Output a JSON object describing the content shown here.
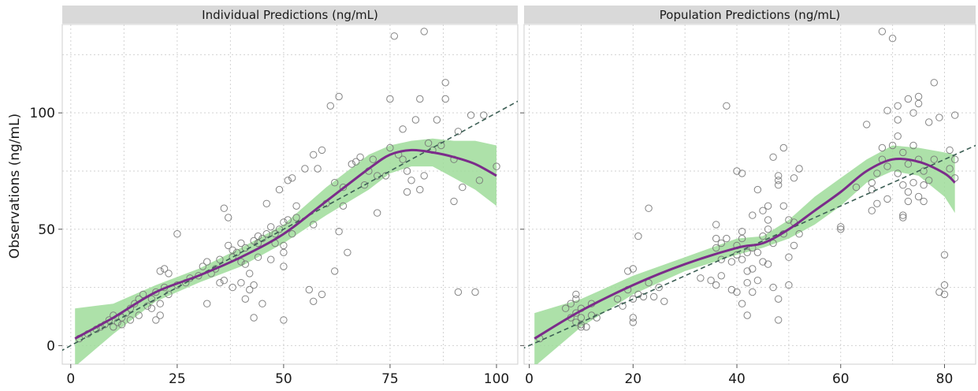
{
  "chart_data": [
    {
      "type": "scatter",
      "title": "Individual Predictions (ng/mL)",
      "xlabel": "",
      "ylabel": "Observations (ng/mL)",
      "xlim": [
        -2,
        105
      ],
      "ylim": [
        -8,
        138
      ],
      "x_ticks": [
        "0",
        "25",
        "50",
        "75",
        "100"
      ],
      "x_tick_values": [
        0,
        25,
        50,
        75,
        100
      ],
      "y_ticks": [
        "0",
        "50",
        "100"
      ],
      "y_tick_values": [
        0,
        50,
        100
      ],
      "grid": true,
      "identity_line": true,
      "colors": {
        "points": "#777777",
        "smooth": "#7b2c8a",
        "band": "#9fdc9a",
        "identity": "#3d5f55"
      },
      "points": [
        [
          2,
          3
        ],
        [
          4,
          5
        ],
        [
          6,
          7
        ],
        [
          7,
          8
        ],
        [
          8,
          9
        ],
        [
          9,
          11
        ],
        [
          10,
          8
        ],
        [
          10,
          13
        ],
        [
          11,
          10
        ],
        [
          12,
          12
        ],
        [
          12,
          9
        ],
        [
          13,
          14
        ],
        [
          14,
          16
        ],
        [
          14,
          11
        ],
        [
          15,
          18
        ],
        [
          16,
          20
        ],
        [
          16,
          13
        ],
        [
          17,
          22
        ],
        [
          18,
          17
        ],
        [
          19,
          16
        ],
        [
          19,
          20
        ],
        [
          20,
          23
        ],
        [
          20,
          11
        ],
        [
          21,
          13
        ],
        [
          21,
          18
        ],
        [
          21,
          32
        ],
        [
          22,
          33
        ],
        [
          22,
          25
        ],
        [
          23,
          22
        ],
        [
          23,
          31
        ],
        [
          25,
          48
        ],
        [
          25,
          26
        ],
        [
          27,
          27
        ],
        [
          28,
          29
        ],
        [
          30,
          30
        ],
        [
          31,
          34
        ],
        [
          32,
          36
        ],
        [
          32,
          18
        ],
        [
          33,
          31
        ],
        [
          34,
          33
        ],
        [
          35,
          37
        ],
        [
          35,
          27
        ],
        [
          36,
          59
        ],
        [
          36,
          28
        ],
        [
          37,
          43
        ],
        [
          37,
          55
        ],
        [
          38,
          38
        ],
        [
          38,
          25
        ],
        [
          38,
          41
        ],
        [
          39,
          40
        ],
        [
          40,
          44
        ],
        [
          40,
          36
        ],
        [
          40,
          27
        ],
        [
          41,
          42
        ],
        [
          41,
          20
        ],
        [
          41,
          35
        ],
        [
          42,
          31
        ],
        [
          42,
          24
        ],
        [
          43,
          45
        ],
        [
          43,
          26
        ],
        [
          43,
          12
        ],
        [
          44,
          38
        ],
        [
          44,
          47
        ],
        [
          44,
          44
        ],
        [
          45,
          46
        ],
        [
          45,
          18
        ],
        [
          46,
          48
        ],
        [
          46,
          61
        ],
        [
          47,
          51
        ],
        [
          47,
          37
        ],
        [
          48,
          44
        ],
        [
          48,
          48
        ],
        [
          49,
          50
        ],
        [
          49,
          67
        ],
        [
          50,
          53
        ],
        [
          50,
          43
        ],
        [
          50,
          40
        ],
        [
          50,
          34
        ],
        [
          50,
          11
        ],
        [
          51,
          71
        ],
        [
          51,
          54
        ],
        [
          52,
          72
        ],
        [
          52,
          48
        ],
        [
          53,
          55
        ],
        [
          53,
          60
        ],
        [
          55,
          76
        ],
        [
          56,
          24
        ],
        [
          57,
          52
        ],
        [
          57,
          82
        ],
        [
          57,
          19
        ],
        [
          58,
          76
        ],
        [
          59,
          84
        ],
        [
          59,
          22
        ],
        [
          60,
          61
        ],
        [
          61,
          103
        ],
        [
          62,
          70
        ],
        [
          62,
          32
        ],
        [
          63,
          107
        ],
        [
          63,
          49
        ],
        [
          64,
          68
        ],
        [
          64,
          60
        ],
        [
          65,
          40
        ],
        [
          66,
          78
        ],
        [
          67,
          79
        ],
        [
          68,
          81
        ],
        [
          69,
          69
        ],
        [
          70,
          75
        ],
        [
          71,
          80
        ],
        [
          72,
          73
        ],
        [
          72,
          57
        ],
        [
          74,
          73
        ],
        [
          75,
          85
        ],
        [
          75,
          106
        ],
        [
          76,
          133
        ],
        [
          77,
          82
        ],
        [
          78,
          93
        ],
        [
          78,
          80
        ],
        [
          79,
          75
        ],
        [
          79,
          66
        ],
        [
          80,
          71
        ],
        [
          81,
          97
        ],
        [
          82,
          106
        ],
        [
          82,
          67
        ],
        [
          83,
          135
        ],
        [
          83,
          73
        ],
        [
          84,
          87
        ],
        [
          85,
          84
        ],
        [
          86,
          97
        ],
        [
          87,
          86
        ],
        [
          88,
          106
        ],
        [
          88,
          113
        ],
        [
          90,
          62
        ],
        [
          90,
          80
        ],
        [
          91,
          92
        ],
        [
          91,
          23
        ],
        [
          92,
          68
        ],
        [
          94,
          99
        ],
        [
          95,
          23
        ],
        [
          96,
          71
        ],
        [
          97,
          99
        ],
        [
          100,
          77
        ]
      ],
      "smooth_x": [
        1,
        10,
        20,
        30,
        40,
        50,
        60,
        70,
        75,
        80,
        85,
        90,
        95,
        100
      ],
      "smooth_y": [
        3,
        12,
        23,
        30,
        38,
        48,
        62,
        76,
        82,
        84,
        83,
        81,
        78,
        73
      ],
      "band_lower": [
        -9,
        5,
        19,
        27,
        34,
        44,
        56,
        67,
        74,
        77,
        77,
        72,
        67,
        60
      ],
      "band_upper": [
        16,
        18,
        26,
        33,
        42,
        52,
        68,
        82,
        86,
        88,
        89,
        88,
        88,
        86
      ]
    },
    {
      "type": "scatter",
      "title": "Population Predictions (ng/mL)",
      "xlabel": "",
      "ylabel": "",
      "xlim": [
        -1,
        86
      ],
      "ylim": [
        -8,
        138
      ],
      "x_ticks": [
        "0",
        "20",
        "40",
        "60",
        "80"
      ],
      "x_tick_values": [
        0,
        20,
        40,
        60,
        80
      ],
      "y_ticks": [
        "0",
        "50",
        "100"
      ],
      "y_tick_values": [
        0,
        50,
        100
      ],
      "grid": true,
      "identity_line": true,
      "colors": {
        "points": "#777777",
        "smooth": "#7b2c8a",
        "band": "#9fdc9a",
        "identity": "#3d5f55"
      },
      "points": [
        [
          2,
          3
        ],
        [
          7,
          16
        ],
        [
          8,
          12
        ],
        [
          8,
          18
        ],
        [
          9,
          10
        ],
        [
          9,
          14
        ],
        [
          9,
          20
        ],
        [
          9,
          22
        ],
        [
          10,
          8
        ],
        [
          10,
          9
        ],
        [
          10,
          12
        ],
        [
          10,
          16
        ],
        [
          11,
          8
        ],
        [
          12,
          13
        ],
        [
          12,
          18
        ],
        [
          13,
          12
        ],
        [
          17,
          20
        ],
        [
          18,
          17
        ],
        [
          19,
          24
        ],
        [
          19,
          32
        ],
        [
          20,
          20
        ],
        [
          20,
          33
        ],
        [
          20,
          12
        ],
        [
          20,
          10
        ],
        [
          21,
          47
        ],
        [
          21,
          22
        ],
        [
          22,
          21
        ],
        [
          23,
          27
        ],
        [
          23,
          59
        ],
        [
          24,
          21
        ],
        [
          25,
          25
        ],
        [
          26,
          19
        ],
        [
          33,
          29
        ],
        [
          35,
          28
        ],
        [
          36,
          46
        ],
        [
          36,
          52
        ],
        [
          36,
          42
        ],
        [
          36,
          26
        ],
        [
          37,
          44
        ],
        [
          37,
          37
        ],
        [
          37,
          30
        ],
        [
          38,
          103
        ],
        [
          38,
          46
        ],
        [
          39,
          24
        ],
        [
          39,
          36
        ],
        [
          40,
          43
        ],
        [
          40,
          39
        ],
        [
          40,
          75
        ],
        [
          40,
          23
        ],
        [
          41,
          74
        ],
        [
          41,
          46
        ],
        [
          41,
          49
        ],
        [
          41,
          37
        ],
        [
          41,
          18
        ],
        [
          42,
          40
        ],
        [
          42,
          32
        ],
        [
          42,
          27
        ],
        [
          42,
          13
        ],
        [
          43,
          56
        ],
        [
          43,
          42
        ],
        [
          43,
          33
        ],
        [
          43,
          23
        ],
        [
          44,
          67
        ],
        [
          44,
          40
        ],
        [
          44,
          28
        ],
        [
          45,
          47
        ],
        [
          45,
          58
        ],
        [
          45,
          36
        ],
        [
          46,
          50
        ],
        [
          46,
          60
        ],
        [
          46,
          54
        ],
        [
          46,
          35
        ],
        [
          47,
          81
        ],
        [
          47,
          44
        ],
        [
          47,
          25
        ],
        [
          48,
          71
        ],
        [
          48,
          73
        ],
        [
          48,
          69
        ],
        [
          48,
          20
        ],
        [
          48,
          11
        ],
        [
          49,
          60
        ],
        [
          49,
          48
        ],
        [
          49,
          85
        ],
        [
          50,
          54
        ],
        [
          50,
          38
        ],
        [
          50,
          26
        ],
        [
          51,
          72
        ],
        [
          51,
          53
        ],
        [
          51,
          43
        ],
        [
          52,
          48
        ],
        [
          52,
          76
        ],
        [
          60,
          50
        ],
        [
          60,
          51
        ],
        [
          63,
          68
        ],
        [
          65,
          95
        ],
        [
          66,
          67
        ],
        [
          66,
          70
        ],
        [
          66,
          58
        ],
        [
          67,
          61
        ],
        [
          67,
          74
        ],
        [
          68,
          80
        ],
        [
          68,
          85
        ],
        [
          68,
          135
        ],
        [
          69,
          101
        ],
        [
          69,
          77
        ],
        [
          69,
          63
        ],
        [
          70,
          86
        ],
        [
          70,
          132
        ],
        [
          71,
          74
        ],
        [
          71,
          90
        ],
        [
          71,
          97
        ],
        [
          71,
          103
        ],
        [
          72,
          83
        ],
        [
          72,
          69
        ],
        [
          72,
          56
        ],
        [
          72,
          55
        ],
        [
          73,
          106
        ],
        [
          73,
          78
        ],
        [
          73,
          66
        ],
        [
          73,
          62
        ],
        [
          74,
          100
        ],
        [
          74,
          86
        ],
        [
          74,
          70
        ],
        [
          75,
          107
        ],
        [
          75,
          104
        ],
        [
          75,
          80
        ],
        [
          75,
          64
        ],
        [
          76,
          75
        ],
        [
          76,
          62
        ],
        [
          76,
          69
        ],
        [
          77,
          96
        ],
        [
          77,
          71
        ],
        [
          78,
          113
        ],
        [
          78,
          80
        ],
        [
          79,
          98
        ],
        [
          79,
          23
        ],
        [
          80,
          39
        ],
        [
          80,
          26
        ],
        [
          80,
          22
        ],
        [
          81,
          84
        ],
        [
          81,
          76
        ],
        [
          82,
          99
        ],
        [
          82,
          80
        ],
        [
          82,
          72
        ]
      ],
      "smooth_x": [
        1,
        10,
        20,
        30,
        40,
        45,
        50,
        55,
        60,
        65,
        70,
        75,
        80,
        82
      ],
      "smooth_y": [
        3,
        15,
        26,
        35,
        42,
        44,
        50,
        58,
        66,
        75,
        80,
        79,
        74,
        70
      ],
      "band_lower": [
        -9,
        8,
        22,
        32,
        39,
        42,
        46,
        52,
        60,
        70,
        75,
        73,
        64,
        57
      ],
      "band_upper": [
        14,
        20,
        30,
        38,
        46,
        47,
        54,
        64,
        72,
        80,
        86,
        85,
        83,
        82
      ]
    }
  ],
  "shared": {
    "ylabel": "Observations (ng/mL)"
  }
}
